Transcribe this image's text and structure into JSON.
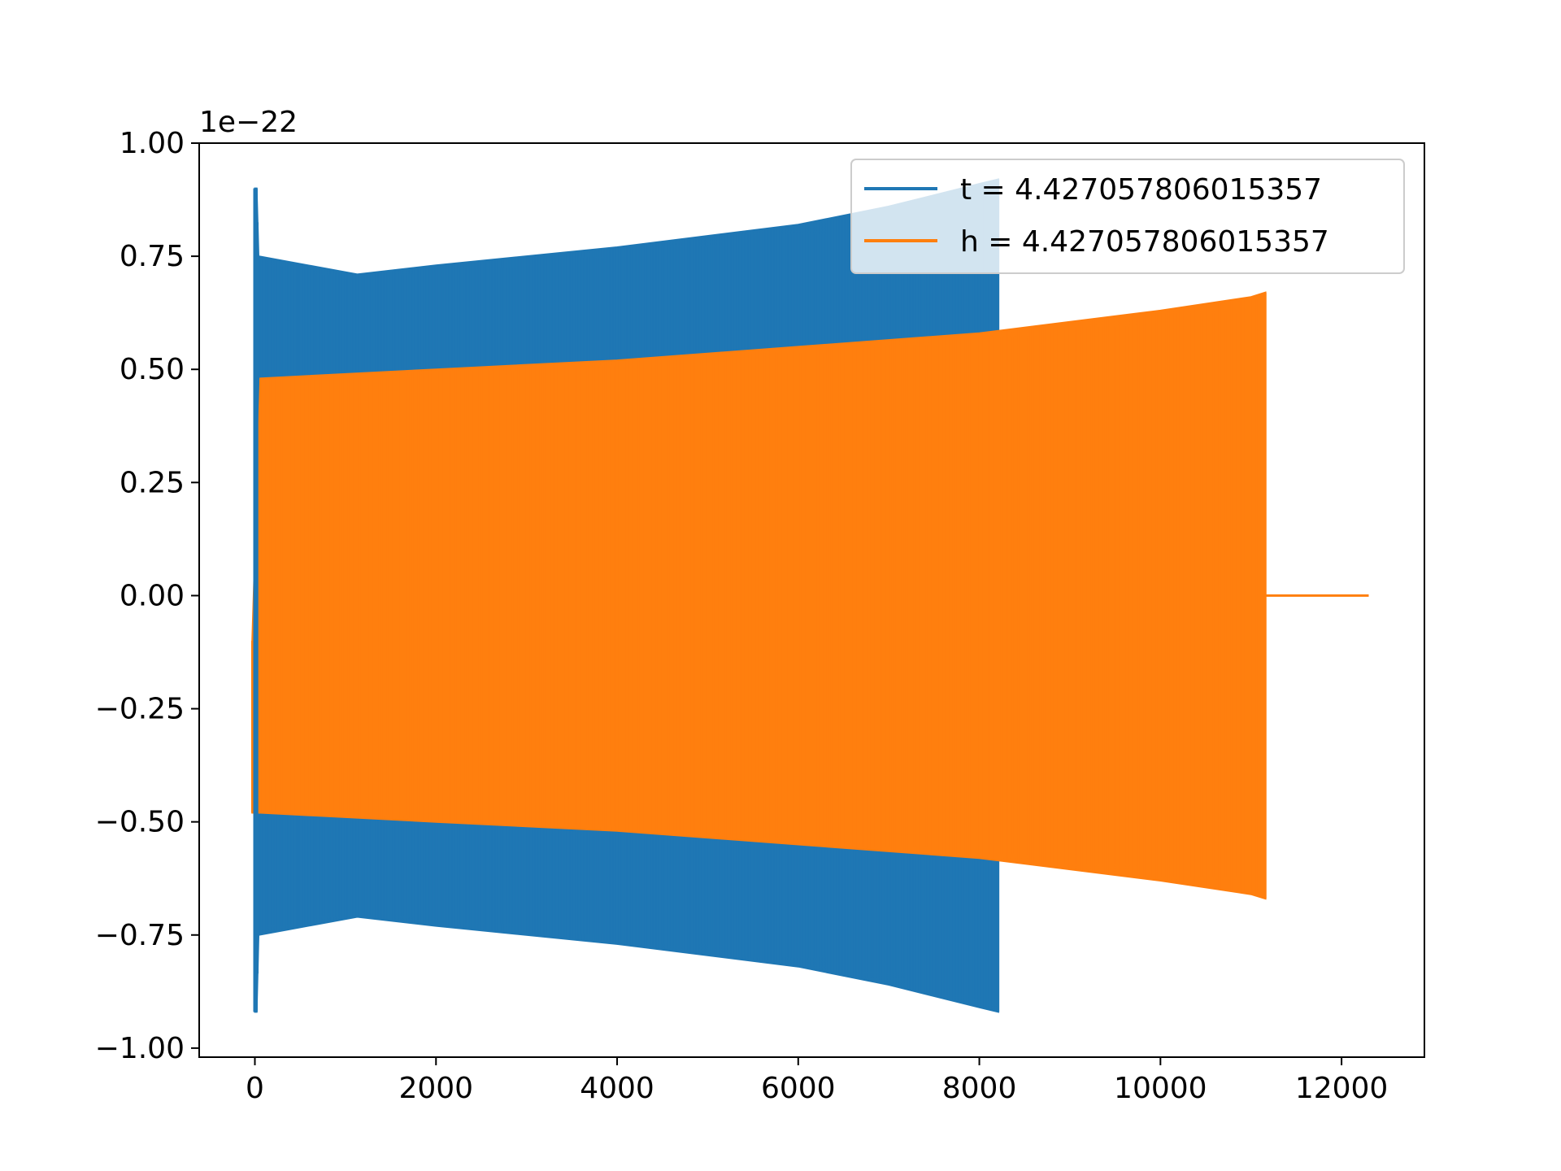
{
  "chart_data": {
    "type": "line",
    "title": "",
    "xlabel": "",
    "ylabel": "",
    "y_offset_label": "1e−22",
    "xlim": [
      -615,
      12915
    ],
    "ylim": [
      -1.02,
      1.0
    ],
    "x_ticks": [
      0,
      2000,
      4000,
      6000,
      8000,
      10000,
      12000
    ],
    "x_tick_labels": [
      "0",
      "2000",
      "4000",
      "6000",
      "8000",
      "10000",
      "12000"
    ],
    "y_ticks": [
      1.0,
      0.75,
      0.5,
      0.25,
      0.0,
      -0.25,
      -0.5,
      -0.75,
      -1.0
    ],
    "y_tick_labels": [
      "1.00",
      "0.75",
      "0.50",
      "0.25",
      "0.00",
      "−0.25",
      "−0.50",
      "−0.75",
      "−1.00"
    ],
    "grid": false,
    "legend_position": "top-right",
    "series": [
      {
        "name": "t = 4.427057806015357",
        "color": "#1f77b4",
        "envelope_description": "dense oscillation; envelope (upper, lower) vs x",
        "envelope": {
          "x": [
            0,
            20,
            40,
            1130,
            2000,
            4000,
            6000,
            7000,
            8000,
            8210
          ],
          "upper": [
            0.9,
            0.9,
            0.75,
            0.71,
            0.73,
            0.77,
            0.82,
            0.86,
            0.91,
            0.92
          ],
          "lower": [
            -0.92,
            -0.92,
            -0.75,
            -0.71,
            -0.73,
            -0.77,
            -0.82,
            -0.86,
            -0.91,
            -0.92
          ]
        }
      },
      {
        "name": "h = 4.427057806015357",
        "color": "#ff7f0e",
        "envelope": {
          "x": [
            -30,
            60,
            2000,
            4000,
            6000,
            8000,
            10000,
            11000,
            11160
          ],
          "upper": [
            -0.1,
            0.48,
            0.5,
            0.52,
            0.55,
            0.58,
            0.63,
            0.66,
            0.67
          ],
          "lower": [
            -0.48,
            -0.48,
            -0.5,
            -0.52,
            -0.55,
            -0.58,
            -0.63,
            -0.66,
            -0.67
          ]
        },
        "tail": {
          "x": [
            11160,
            12300
          ],
          "y": [
            0.0,
            0.0
          ]
        }
      }
    ]
  }
}
